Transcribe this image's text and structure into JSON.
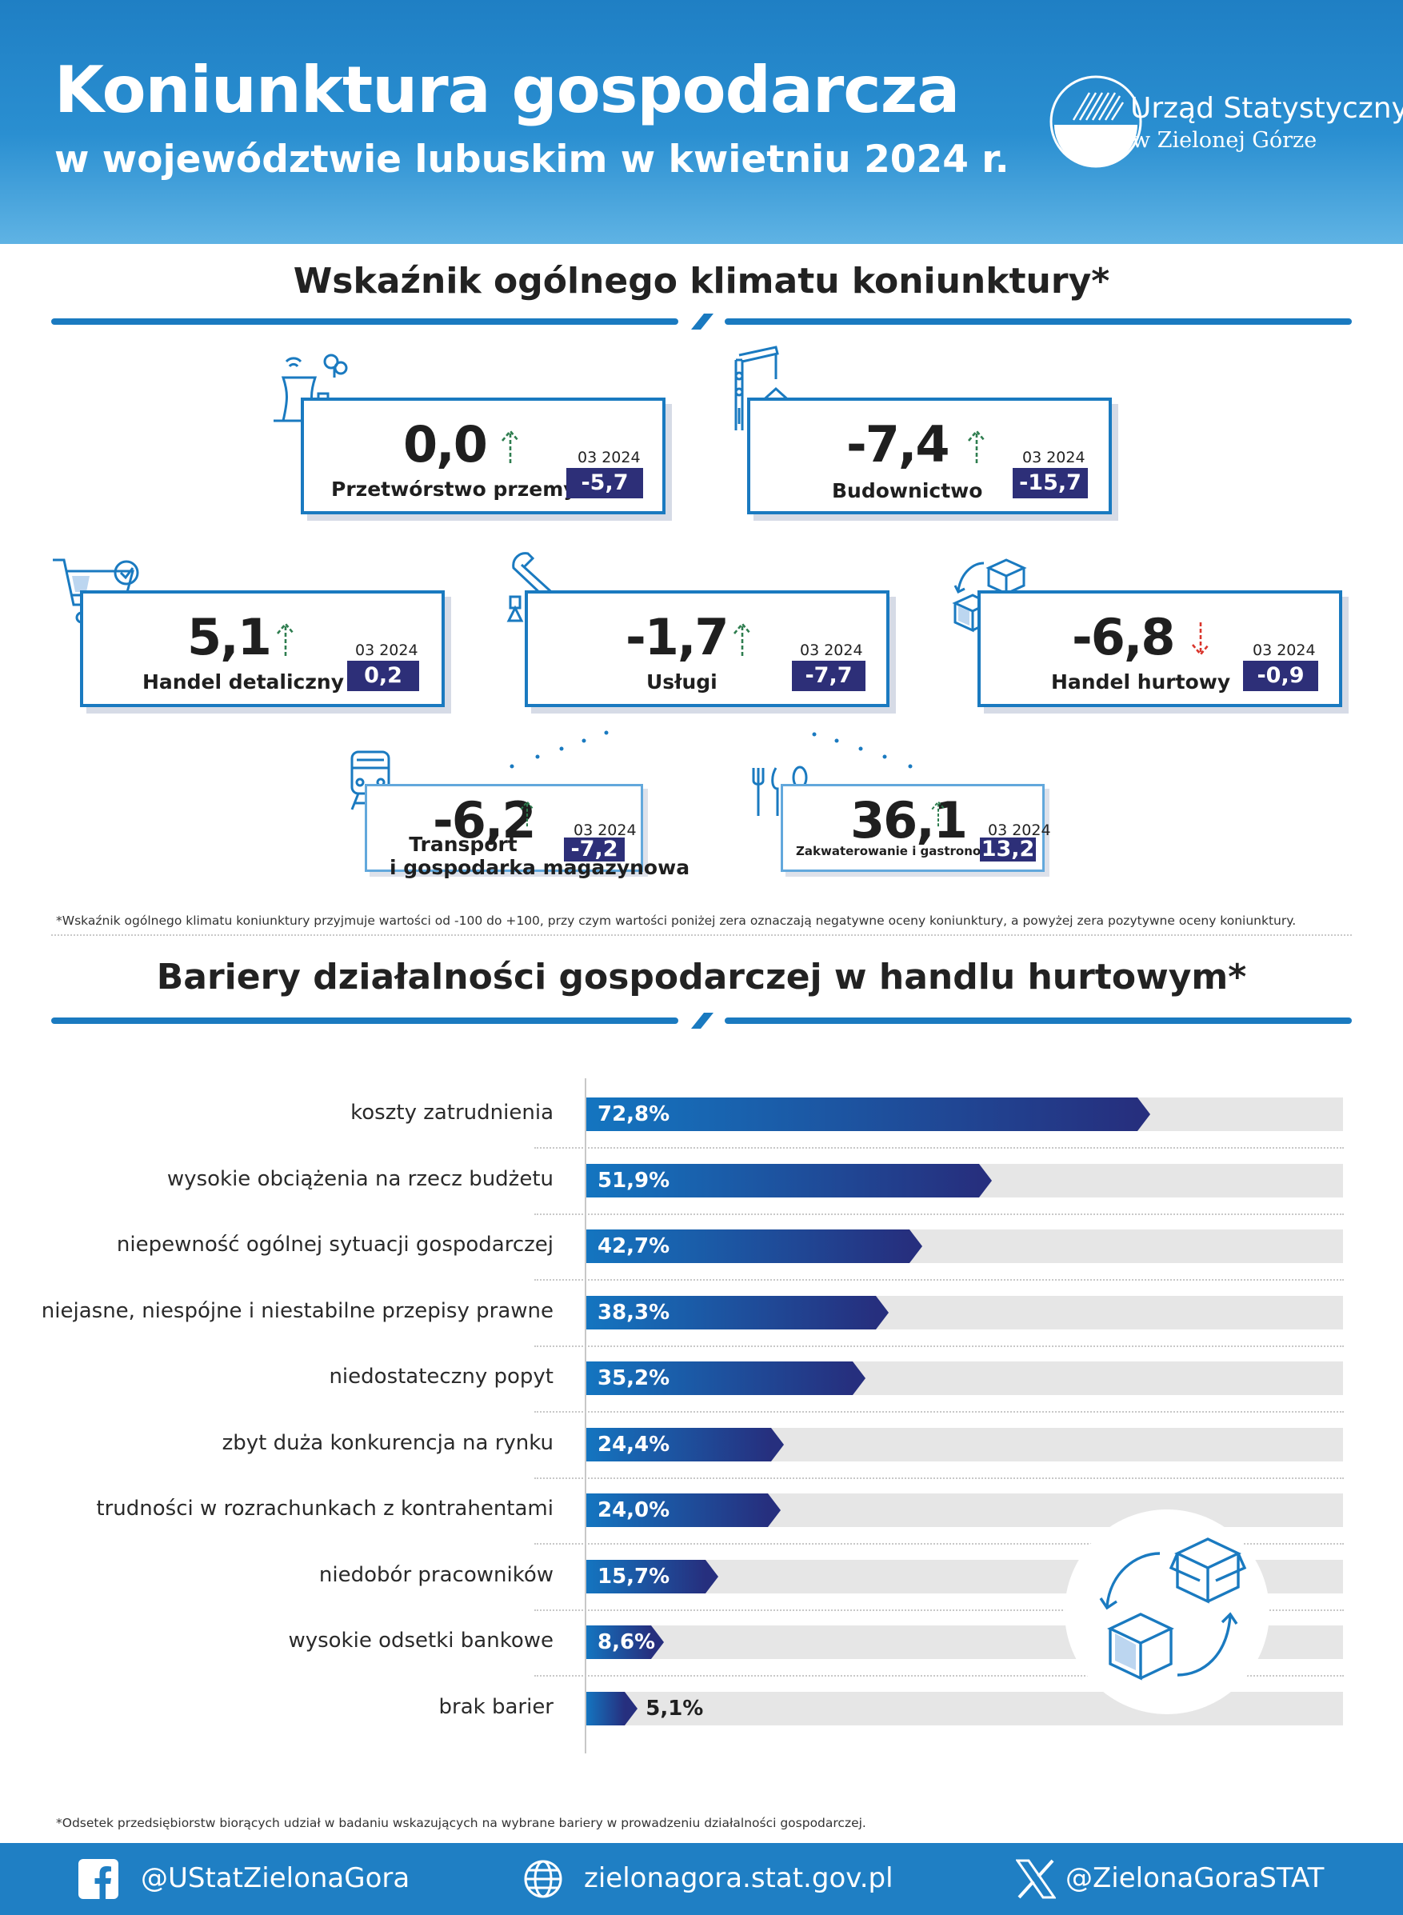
{
  "header": {
    "title": "Koniunktura gospodarcza",
    "subtitle": "w województwie lubuskim w kwietniu 2024 r.",
    "org_line1": "Urząd Statystyczny",
    "org_line2": "w Zielonej Górze"
  },
  "indicators": {
    "title": "Wskaźnik ogólnego klimatu koniunktury*",
    "prev_label": "03 2024",
    "items": [
      {
        "label": "Przetwórstwo przemysłowe",
        "value": "0,0",
        "direction": "up",
        "prev": "-5,7",
        "icon": "factory-icon"
      },
      {
        "label": "Budownictwo",
        "value": "-7,4",
        "direction": "up",
        "prev": "-15,7",
        "icon": "crane-icon"
      },
      {
        "label": "Handel detaliczny",
        "value": "5,1",
        "direction": "up",
        "prev": "0,2",
        "icon": "shopping-cart-icon"
      },
      {
        "label": "Usługi",
        "value": "-1,7",
        "direction": "up",
        "prev": "-7,7",
        "icon": "wrench-icon"
      },
      {
        "label": "Handel hurtowy",
        "value": "-6,8",
        "direction": "down",
        "prev": "-0,9",
        "icon": "boxes-cycle-icon"
      },
      {
        "label_line1": "Transport",
        "label_line2": "i gospodarka magazynowa",
        "value": "-6,2",
        "direction": "up",
        "prev": "-7,2",
        "icon": "train-icon"
      },
      {
        "label": "Zakwaterowanie i gastronomia",
        "value": "36,1",
        "direction": "up",
        "prev": "13,2",
        "icon": "cutlery-icon"
      }
    ],
    "footnote": "*Wskaźnik ogólnego klimatu koniunktury przyjmuje wartości od -100 do +100, przy czym wartości poniżej zera oznaczają negatywne oceny koniunktury, a powyżej zera pozytywne oceny koniunktury.",
    "colors": {
      "up": "#2e7d4f",
      "down": "#d9342b",
      "box": "#2d2f78",
      "frame": "#1a7ac0"
    }
  },
  "barriers": {
    "title": "Bariery działalności gospodarczej w handlu hurtowym*",
    "footnote": "*Odsetek przedsiębiorstw biorących udział w badaniu wskazujących na wybrane bariery w prowadzeniu działalności gospodarczej."
  },
  "chart_data": {
    "type": "bar",
    "orientation": "horizontal",
    "unit": "%",
    "xlim": [
      0,
      100
    ],
    "categories": [
      "koszty zatrudnienia",
      "wysokie obciążenia na rzecz budżetu",
      "niepewność ogólnej sytuacji gospodarczej",
      "niejasne, niespójne i niestabilne przepisy prawne",
      "niedostateczny popyt",
      "zbyt duża konkurencja na rynku",
      "trudności w rozrachunkach z kontrahentami",
      "niedobór pracowników",
      "wysokie odsetki bankowe",
      "brak barier"
    ],
    "values": [
      72.8,
      51.9,
      42.7,
      38.3,
      35.2,
      24.4,
      24.0,
      15.7,
      8.6,
      5.1
    ],
    "value_labels": [
      "72,8%",
      "51,9%",
      "42,7%",
      "38,3%",
      "35,2%",
      "24,4%",
      "24,0%",
      "15,7%",
      "8,6%",
      "5,1%"
    ],
    "colors": {
      "bar_start": "#1475c0",
      "bar_end": "#262f7e",
      "track": "#e6e6e6"
    }
  },
  "footer": {
    "facebook": "@UStatZielonaGora",
    "website": "zielonagora.stat.gov.pl",
    "x": "@ZielonaGoraSTAT"
  }
}
